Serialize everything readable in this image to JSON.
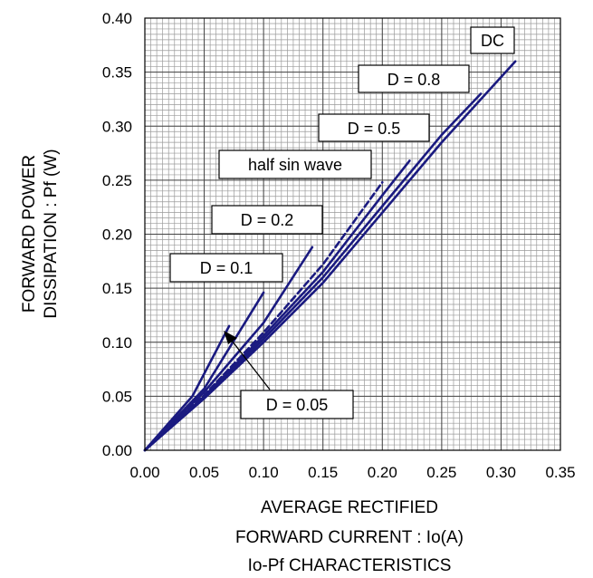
{
  "chart_data": {
    "type": "line",
    "xlabel": [
      "AVERAGE RECTIFIED",
      "FORWARD CURRENT : Io(A)"
    ],
    "ylabel": [
      "FORWARD POWER",
      "DISSIPATION : Pf (W)"
    ],
    "caption": "Io-Pf CHARACTERISTICS",
    "xlim": [
      0,
      0.35
    ],
    "ylim": [
      0,
      0.4
    ],
    "x_ticks": [
      "0.00",
      "0.05",
      "0.10",
      "0.15",
      "0.20",
      "0.25",
      "0.30",
      "0.35"
    ],
    "y_ticks": [
      "0.00",
      "0.05",
      "0.10",
      "0.15",
      "0.20",
      "0.25",
      "0.30",
      "0.35",
      "0.40"
    ],
    "grid": true,
    "line_color": "#1a1a80",
    "series": [
      {
        "name": "DC",
        "style": "solid",
        "x": [
          0,
          0.05,
          0.1,
          0.15,
          0.2,
          0.25,
          0.312
        ],
        "y": [
          0,
          0.048,
          0.1,
          0.155,
          0.22,
          0.285,
          0.36
        ]
      },
      {
        "name": "D = 0.8",
        "style": "solid",
        "x": [
          0,
          0.05,
          0.1,
          0.15,
          0.2,
          0.25,
          0.283
        ],
        "y": [
          0,
          0.049,
          0.103,
          0.16,
          0.226,
          0.292,
          0.33
        ]
      },
      {
        "name": "D = 0.5",
        "style": "solid",
        "x": [
          0,
          0.05,
          0.1,
          0.15,
          0.2,
          0.223
        ],
        "y": [
          0,
          0.05,
          0.106,
          0.165,
          0.236,
          0.268
        ]
      },
      {
        "name": "half sin wave",
        "style": "dashed",
        "x": [
          0,
          0.05,
          0.1,
          0.15,
          0.2
        ],
        "y": [
          0,
          0.051,
          0.109,
          0.172,
          0.248
        ]
      },
      {
        "name": "D = 0.2",
        "style": "solid",
        "x": [
          0,
          0.05,
          0.1,
          0.141
        ],
        "y": [
          0,
          0.054,
          0.118,
          0.188
        ]
      },
      {
        "name": "D = 0.1",
        "style": "solid",
        "x": [
          0,
          0.05,
          0.1
        ],
        "y": [
          0,
          0.057,
          0.146
        ]
      },
      {
        "name": "D = 0.05",
        "style": "solid",
        "x": [
          0,
          0.04,
          0.071
        ],
        "y": [
          0,
          0.05,
          0.115
        ]
      }
    ],
    "annotations": [
      "DC",
      "D = 0.8",
      "D = 0.5",
      "half sin wave",
      "D = 0.2",
      "D = 0.1",
      "D = 0.05"
    ]
  }
}
